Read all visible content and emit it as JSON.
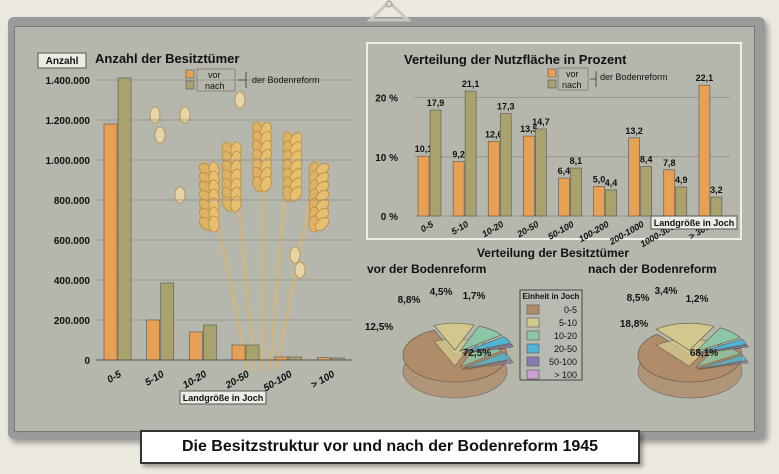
{
  "caption": "Die Besitzstruktur vor und nach der Bodenreform 1945",
  "colors": {
    "vor": "#e8a055",
    "nach": "#a9a26d",
    "board": "#b5b6ac"
  },
  "chart_data": [
    {
      "type": "bar",
      "title": "Anzahl der Besitztümer",
      "tag": "Anzahl",
      "xlabel": "Landgröße in Joch",
      "legend_suffix": "der Bodenreform",
      "categories": [
        "0-5",
        "5-10",
        "10-20",
        "20-50",
        "50-100",
        "> 100"
      ],
      "series": [
        {
          "name": "vor",
          "values": [
            1180000,
            200000,
            140000,
            75000,
            15000,
            12000
          ]
        },
        {
          "name": "nach",
          "values": [
            1410000,
            385000,
            175000,
            75000,
            15000,
            10000
          ]
        }
      ],
      "yticks": [
        "0",
        "200.000",
        "400.000",
        "600.000",
        "800.000",
        "1.000.000",
        "1.200.000",
        "1.400.000"
      ],
      "ylim": [
        0,
        1400000
      ],
      "grid": true,
      "legend_position": "top"
    },
    {
      "type": "bar",
      "title": "Verteilung der Nutzfläche in Prozent",
      "xlabel": "Landgröße in Joch",
      "legend_suffix": "der Bodenreform",
      "categories": [
        "0-5",
        "5-10",
        "10-20",
        "20-50",
        "50-100",
        "100-200",
        "200-1000",
        "1000-3000",
        "> 3000"
      ],
      "series": [
        {
          "name": "vor",
          "values": [
            10.1,
            9.2,
            12.6,
            13.5,
            6.4,
            5.0,
            13.2,
            7.8,
            22.1
          ],
          "labels": [
            "10,1",
            "9,2",
            "12,6",
            "13,5",
            "6,4",
            "5,0",
            "13,2",
            "7,8",
            "22,1"
          ]
        },
        {
          "name": "nach",
          "values": [
            17.9,
            21.1,
            17.3,
            14.7,
            8.1,
            4.4,
            8.4,
            4.9,
            3.2
          ],
          "labels": [
            "17,9",
            "21,1",
            "17,3",
            "14,7",
            "8,1",
            "4,4",
            "8,4",
            "4,9",
            "3,2"
          ]
        }
      ],
      "yticks": [
        "0 %",
        "10 %",
        "20 %"
      ],
      "ylim": [
        0,
        25
      ],
      "grid": true,
      "legend_position": "top"
    },
    {
      "type": "pie",
      "title": "Verteilung der Besitztümer",
      "subtitle": "vor der Bodenreform",
      "legend_title": "Einheit in Joch",
      "labels": [
        "0-5",
        "5-10",
        "10-20",
        "20-50",
        "50-100",
        "> 100"
      ],
      "values": [
        72.5,
        12.5,
        8.8,
        4.5,
        1.7,
        0.0
      ],
      "value_labels": [
        "72,5%",
        "12,5%",
        "8,8%",
        "4,5%",
        "1,7%",
        ""
      ],
      "colors": [
        "#b08c6a",
        "#d2c88d",
        "#8dc6a6",
        "#4fb4d6",
        "#8a7bb0",
        "#c9a1cf"
      ]
    },
    {
      "type": "pie",
      "subtitle": "nach der Bodenreform",
      "labels": [
        "0-5",
        "5-10",
        "10-20",
        "20-50",
        "50-100",
        "> 100"
      ],
      "values": [
        68.1,
        18.8,
        8.5,
        3.4,
        1.2,
        0.0
      ],
      "value_labels": [
        "68,1%",
        "18,8%",
        "8,5%",
        "3,4%",
        "1,2%",
        ""
      ],
      "colors": [
        "#b08c6a",
        "#d2c88d",
        "#8dc6a6",
        "#4fb4d6",
        "#8a7bb0",
        "#c9a1cf"
      ]
    }
  ]
}
